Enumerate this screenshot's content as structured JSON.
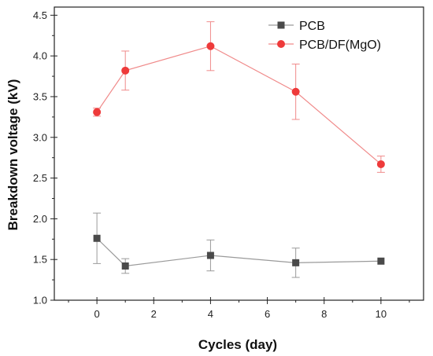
{
  "chart_data": {
    "type": "line",
    "title": "",
    "xlabel": "Cycles (day)",
    "ylabel": "Breakdown voltage (kV)",
    "xlim": [
      -1.5,
      11.5
    ],
    "ylim": [
      1.0,
      4.6
    ],
    "x_ticks": [
      "0",
      "2",
      "4",
      "6",
      "8",
      "10"
    ],
    "y_ticks": [
      "1.0",
      "1.5",
      "2.0",
      "2.5",
      "3.0",
      "3.5",
      "4.0",
      "4.5"
    ],
    "grid": false,
    "legend_position": "top-right",
    "series": [
      {
        "name": "PCB",
        "color": "#4a4a4a",
        "marker": "square",
        "x": [
          0,
          1,
          4,
          7,
          10
        ],
        "y": [
          1.76,
          1.42,
          1.55,
          1.46,
          1.48
        ],
        "error": [
          0.31,
          0.09,
          0.19,
          0.18,
          0.0
        ]
      },
      {
        "name": "PCB/DF(MgO)",
        "color": "#ee3a3a",
        "marker": "circle",
        "x": [
          0,
          1,
          4,
          7,
          10
        ],
        "y": [
          3.31,
          3.82,
          4.12,
          3.56,
          2.67
        ],
        "error": [
          0.05,
          0.24,
          0.3,
          0.34,
          0.1
        ]
      }
    ]
  }
}
